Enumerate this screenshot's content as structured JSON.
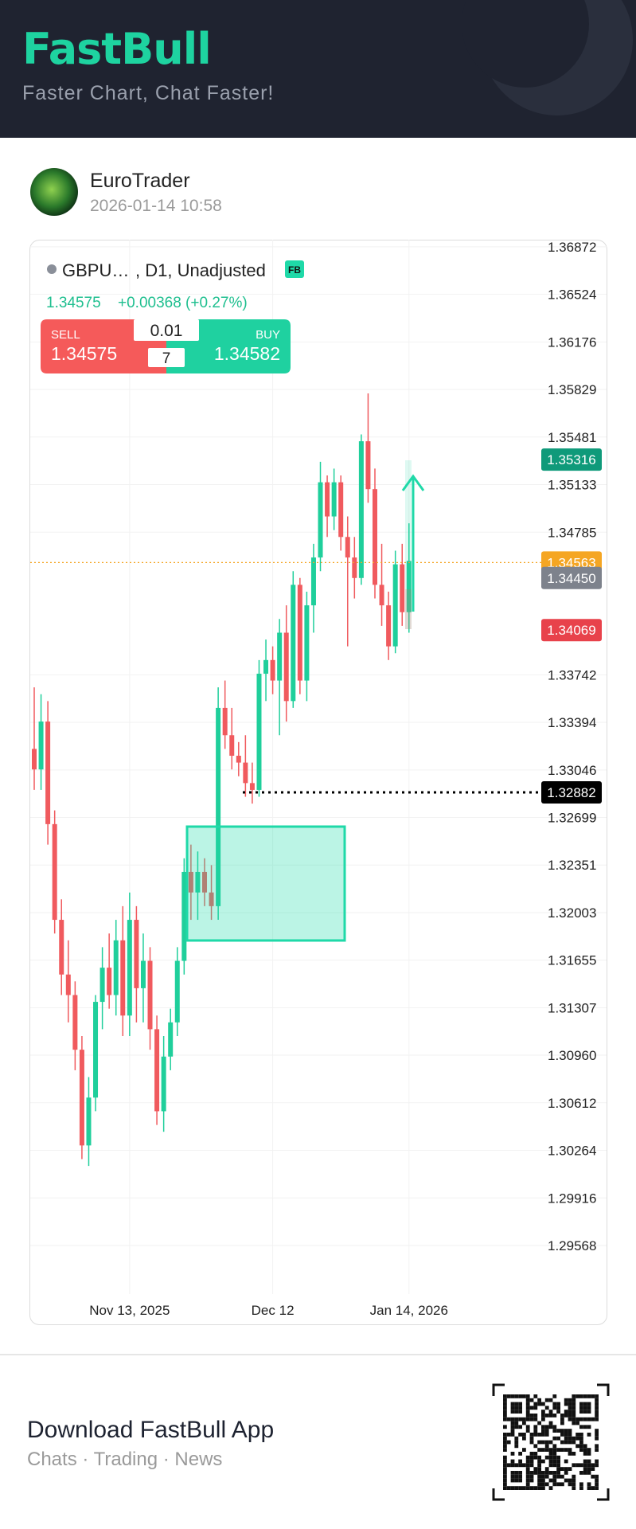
{
  "header": {
    "logo": "FastBull",
    "tagline": "Faster Chart, Chat Faster!"
  },
  "post": {
    "author": "EuroTrader",
    "timestamp": "2026-01-14 10:58"
  },
  "chart_data": {
    "type": "candlestick",
    "symbol": "GBPU…",
    "info": ", D1, Unadjusted",
    "badge": "FB",
    "last_price": 1.34575,
    "change": "+0.00368 (+0.27%)",
    "trade": {
      "sell_label": "SELL",
      "sell_price": 1.34575,
      "lot": 0.01,
      "count": 7,
      "buy_label": "BUY",
      "buy_price": 1.34582
    },
    "categories": [
      null,
      null,
      null,
      null,
      null,
      null,
      null,
      null,
      null,
      null,
      null,
      null,
      null,
      null,
      "Nov 13, 2025",
      null,
      null,
      null,
      null,
      null,
      null,
      null,
      null,
      null,
      null,
      null,
      null,
      null,
      null,
      null,
      null,
      null,
      null,
      null,
      null,
      "Dec 12",
      null,
      null,
      null,
      null,
      null,
      null,
      null,
      null,
      null,
      null,
      null,
      null,
      null,
      null,
      null,
      null,
      null,
      null,
      null,
      "Jan 14, 2026"
    ],
    "open": [
      1.332,
      1.3305,
      1.334,
      1.3265,
      1.3195,
      1.3155,
      1.314,
      1.31,
      1.303,
      1.3065,
      1.3135,
      1.316,
      1.314,
      1.318,
      1.3125,
      1.3195,
      1.3145,
      1.3165,
      1.3115,
      1.3055,
      1.3095,
      1.312,
      1.3165,
      1.323,
      1.3215,
      1.323,
      1.3215,
      1.3205,
      1.335,
      1.333,
      1.3315,
      1.331,
      1.3295,
      1.329,
      1.3375,
      1.3385,
      1.337,
      1.3405,
      1.3355,
      1.344,
      1.337,
      1.3425,
      1.346,
      1.3515,
      1.349,
      1.3515,
      1.3475,
      1.346,
      1.3445,
      1.3545,
      1.351,
      1.344,
      1.3425,
      1.3395,
      1.3455,
      1.342
    ],
    "high": [
      1.3365,
      1.336,
      1.3355,
      1.3275,
      1.321,
      1.318,
      1.315,
      1.311,
      1.308,
      1.314,
      1.3175,
      1.3185,
      1.3195,
      1.3205,
      1.3215,
      1.3205,
      1.3185,
      1.3175,
      1.3125,
      1.311,
      1.313,
      1.3175,
      1.324,
      1.325,
      1.3245,
      1.324,
      1.3235,
      1.3365,
      1.337,
      1.335,
      1.3325,
      1.333,
      1.331,
      1.3385,
      1.34,
      1.3395,
      1.3415,
      1.3425,
      1.345,
      1.3445,
      1.3435,
      1.347,
      1.353,
      1.352,
      1.3525,
      1.352,
      1.349,
      1.3475,
      1.355,
      1.358,
      1.3525,
      1.347,
      1.3435,
      1.3465,
      1.347,
      1.3485
    ],
    "low": [
      1.329,
      1.329,
      1.325,
      1.3185,
      1.314,
      1.312,
      1.3085,
      1.302,
      1.3015,
      1.3055,
      1.3115,
      1.313,
      1.3125,
      1.311,
      1.311,
      1.312,
      1.312,
      1.31,
      1.3045,
      1.304,
      1.3085,
      1.311,
      1.3155,
      1.3195,
      1.3195,
      1.3205,
      1.3195,
      1.3195,
      1.332,
      1.3305,
      1.33,
      1.3285,
      1.328,
      1.3285,
      1.3355,
      1.336,
      1.333,
      1.334,
      1.335,
      1.336,
      1.3355,
      1.3405,
      1.345,
      1.3475,
      1.348,
      1.3465,
      1.3395,
      1.343,
      1.344,
      1.35,
      1.343,
      1.341,
      1.3385,
      1.339,
      1.341,
      1.3405
    ],
    "close": [
      1.3305,
      1.334,
      1.3265,
      1.3195,
      1.3155,
      1.314,
      1.31,
      1.303,
      1.3065,
      1.3135,
      1.316,
      1.314,
      1.318,
      1.3125,
      1.3195,
      1.3145,
      1.3165,
      1.3115,
      1.3055,
      1.3095,
      1.312,
      1.3165,
      1.323,
      1.3215,
      1.323,
      1.3215,
      1.3205,
      1.335,
      1.333,
      1.3315,
      1.331,
      1.3295,
      1.329,
      1.3375,
      1.3385,
      1.337,
      1.3405,
      1.3355,
      1.344,
      1.337,
      1.3425,
      1.346,
      1.3515,
      1.349,
      1.3515,
      1.3475,
      1.346,
      1.3445,
      1.3545,
      1.351,
      1.344,
      1.3425,
      1.3395,
      1.3455,
      1.342,
      1.34575
    ],
    "up_color": "#1fcf9b",
    "down_color": "#f05a5e",
    "ylim": [
      1.29213,
      1.36924
    ],
    "yticks": [
      1.36872,
      1.36524,
      1.36176,
      1.35829,
      1.35481,
      1.35133,
      1.34785,
      1.33742,
      1.33394,
      1.33046,
      1.32699,
      1.32351,
      1.32003,
      1.31655,
      1.31307,
      {
        "value": 1.3096,
        "label": "1.30960"
      },
      1.30612,
      1.30264,
      1.29916,
      1.29568
    ],
    "grid": true,
    "price_lines": [
      {
        "value": 1.35316,
        "color": "#0f9a7a"
      },
      {
        "value": 1.34563,
        "color": "#f5a623"
      },
      {
        "value": 1.3445,
        "label": "1.34450",
        "color": "#7d828c"
      },
      {
        "value": 1.34069,
        "color": "#e8424b"
      },
      {
        "value": 1.32882,
        "color": "#000000"
      }
    ]
  },
  "footer": {
    "title": "Download FastBull App",
    "subtitle": "Chats · Trading · News"
  }
}
